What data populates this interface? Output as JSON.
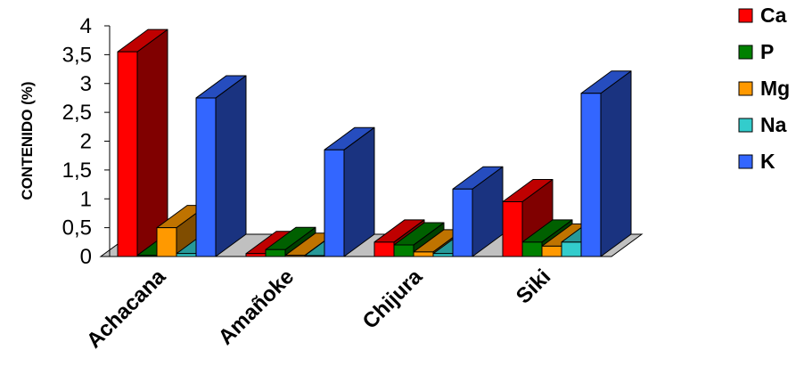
{
  "chart_data": {
    "type": "bar",
    "subtype": "3d-clustered",
    "title": "",
    "xlabel": "",
    "ylabel": "CONTENIDO (%)",
    "ylim": [
      0,
      4
    ],
    "yticks": [
      "0",
      "0,5",
      "1",
      "1,5",
      "2",
      "2,5",
      "3",
      "3,5",
      "4"
    ],
    "categories": [
      "Achacana",
      "Amañoke",
      "Chijura",
      "Siki"
    ],
    "series": [
      {
        "name": "Ca",
        "color": "#ff0000",
        "values": [
          3.55,
          0.05,
          0.25,
          0.95
        ]
      },
      {
        "name": "P",
        "color": "#008000",
        "values": [
          0.02,
          0.12,
          0.2,
          0.25
        ]
      },
      {
        "name": "Mg",
        "color": "#ff9900",
        "values": [
          0.5,
          0.02,
          0.08,
          0.18
        ]
      },
      {
        "name": "Na",
        "color": "#33cccc",
        "values": [
          0.05,
          0.01,
          0.05,
          0.25
        ]
      },
      {
        "name": "K",
        "color": "#3366ff",
        "values": [
          2.75,
          1.85,
          1.17,
          2.83
        ]
      }
    ],
    "legend": {
      "position": "right",
      "entries": [
        "Ca",
        "P",
        "Mg",
        "Na",
        "K"
      ]
    },
    "floor_color": "#c0c0c0",
    "grid": false
  }
}
